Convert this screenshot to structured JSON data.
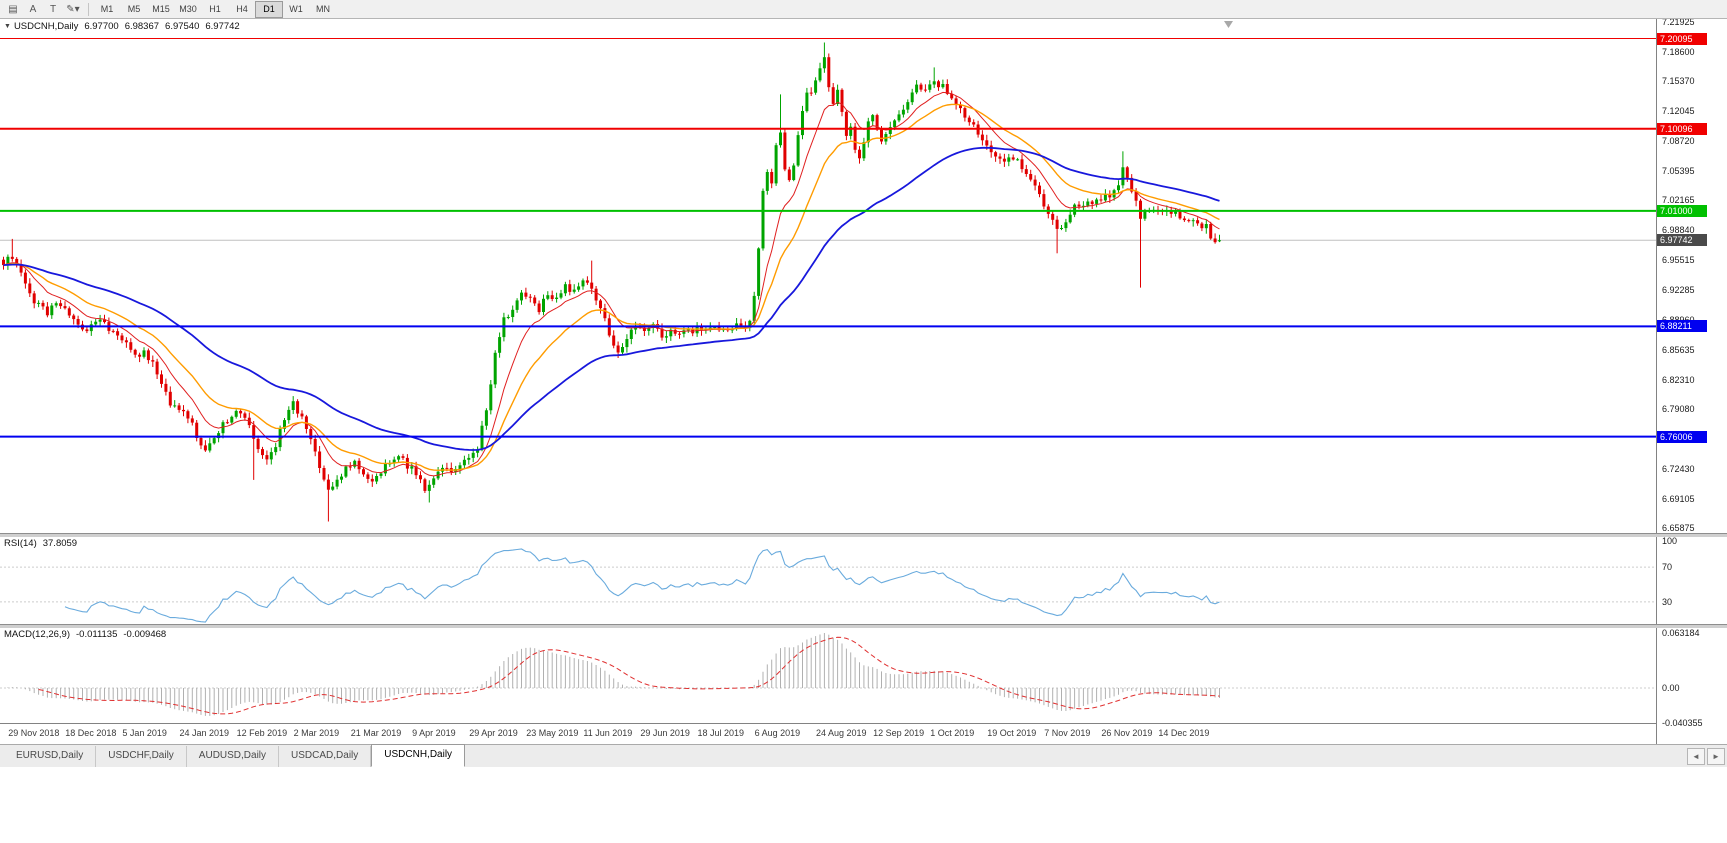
{
  "toolbar": {
    "icons": [
      {
        "name": "chart-list-icon",
        "glyph": "▤"
      },
      {
        "name": "cursor-a-icon",
        "glyph": "A"
      },
      {
        "name": "text-tool-icon",
        "glyph": "T"
      },
      {
        "name": "shapes-tool-icon",
        "glyph": "✎▾"
      }
    ],
    "timeframes": [
      "M1",
      "M5",
      "M15",
      "M30",
      "H1",
      "H4",
      "D1",
      "W1",
      "MN"
    ],
    "active_timeframe": "D1"
  },
  "main_chart": {
    "marker_glyph": "▼",
    "title": "USDCNH,Daily",
    "open": "6.97700",
    "high": "6.98367",
    "low": "6.97540",
    "close": "6.97742"
  },
  "rsi_panel": {
    "label": "RSI(14)",
    "value": "37.8059"
  },
  "macd_panel": {
    "label": "MACD(12,26,9)",
    "value1": "-0.011135",
    "value2": "-0.009468"
  },
  "tabbar": {
    "tabs": [
      "EURUSD,Daily",
      "USDCHF,Daily",
      "AUDUSD,Daily",
      "USDCAD,Daily",
      "USDCNH,Daily"
    ],
    "active": "USDCNH,Daily",
    "scroll_left": "◄",
    "scroll_right": "►"
  },
  "chart_data": {
    "type": "candlestick",
    "symbol": "USDCNH",
    "period": "Daily",
    "bars": 278,
    "price_ticks": [
      "7.21925",
      "7.18600",
      "7.15370",
      "7.12045",
      "7.08720",
      "7.05395",
      "7.02165",
      "6.98840",
      "6.95515",
      "6.92285",
      "6.88960",
      "6.85635",
      "6.82310",
      "6.79080",
      "6.75755",
      "6.72430",
      "6.69105",
      "6.65875"
    ],
    "date_labels": [
      "29 Nov 2018",
      "18 Dec 2018",
      "5 Jan 2019",
      "24 Jan 2019",
      "12 Feb 2019",
      "2 Mar 2019",
      "21 Mar 2019",
      "9 Apr 2019",
      "29 Apr 2019",
      "23 May 2019",
      "11 Jun 2019",
      "29 Jun 2019",
      "18 Jul 2019",
      "6 Aug 2019",
      "24 Aug 2019",
      "12 Sep 2019",
      "1 Oct 2019",
      "19 Oct 2019",
      "7 Nov 2019",
      "26 Nov 2019",
      "14 Dec 2019"
    ],
    "date_label_bars": [
      2,
      15,
      28,
      41,
      54,
      67,
      80,
      94,
      107,
      120,
      133,
      146,
      159,
      172,
      186,
      199,
      212,
      225,
      238,
      251,
      264
    ],
    "close_anchors": [
      [
        0,
        6.95
      ],
      [
        2,
        6.96
      ],
      [
        4,
        6.938
      ],
      [
        6,
        6.917
      ],
      [
        8,
        6.905
      ],
      [
        10,
        6.896
      ],
      [
        12,
        6.906
      ],
      [
        14,
        6.898
      ],
      [
        16,
        6.888
      ],
      [
        18,
        6.876
      ],
      [
        20,
        6.884
      ],
      [
        22,
        6.889
      ],
      [
        24,
        6.88
      ],
      [
        26,
        6.87
      ],
      [
        28,
        6.862
      ],
      [
        30,
        6.848
      ],
      [
        32,
        6.852
      ],
      [
        34,
        6.843
      ],
      [
        36,
        6.815
      ],
      [
        38,
        6.798
      ],
      [
        40,
        6.79
      ],
      [
        42,
        6.783
      ],
      [
        44,
        6.76
      ],
      [
        46,
        6.745
      ],
      [
        48,
        6.76
      ],
      [
        50,
        6.772
      ],
      [
        52,
        6.785
      ],
      [
        54,
        6.788
      ],
      [
        56,
        6.772
      ],
      [
        58,
        6.748
      ],
      [
        60,
        6.735
      ],
      [
        62,
        6.752
      ],
      [
        64,
        6.782
      ],
      [
        66,
        6.798
      ],
      [
        68,
        6.78
      ],
      [
        70,
        6.758
      ],
      [
        72,
        6.725
      ],
      [
        74,
        6.702
      ],
      [
        76,
        6.712
      ],
      [
        78,
        6.723
      ],
      [
        80,
        6.733
      ],
      [
        82,
        6.722
      ],
      [
        84,
        6.71
      ],
      [
        86,
        6.723
      ],
      [
        88,
        6.731
      ],
      [
        90,
        6.737
      ],
      [
        92,
        6.728
      ],
      [
        94,
        6.721
      ],
      [
        96,
        6.703
      ],
      [
        98,
        6.716
      ],
      [
        100,
        6.728
      ],
      [
        102,
        6.725
      ],
      [
        104,
        6.731
      ],
      [
        106,
        6.736
      ],
      [
        108,
        6.75
      ],
      [
        110,
        6.788
      ],
      [
        112,
        6.852
      ],
      [
        114,
        6.89
      ],
      [
        116,
        6.903
      ],
      [
        118,
        6.918
      ],
      [
        120,
        6.91
      ],
      [
        122,
        6.902
      ],
      [
        124,
        6.92
      ],
      [
        126,
        6.912
      ],
      [
        128,
        6.926
      ],
      [
        130,
        6.923
      ],
      [
        132,
        6.933
      ],
      [
        134,
        6.927
      ],
      [
        136,
        6.902
      ],
      [
        138,
        6.873
      ],
      [
        140,
        6.856
      ],
      [
        142,
        6.869
      ],
      [
        144,
        6.88
      ],
      [
        146,
        6.875
      ],
      [
        148,
        6.886
      ],
      [
        150,
        6.871
      ],
      [
        152,
        6.879
      ],
      [
        154,
        6.875
      ],
      [
        156,
        6.877
      ],
      [
        158,
        6.879
      ],
      [
        160,
        6.876
      ],
      [
        162,
        6.881
      ],
      [
        164,
        6.878
      ],
      [
        166,
        6.883
      ],
      [
        168,
        6.88
      ],
      [
        170,
        6.886
      ],
      [
        171,
        6.912
      ],
      [
        172,
        6.968
      ],
      [
        173,
        7.028
      ],
      [
        174,
        7.052
      ],
      [
        175,
        7.042
      ],
      [
        176,
        7.08
      ],
      [
        177,
        7.098
      ],
      [
        178,
        7.06
      ],
      [
        179,
        7.042
      ],
      [
        180,
        7.062
      ],
      [
        181,
        7.09
      ],
      [
        182,
        7.12
      ],
      [
        183,
        7.145
      ],
      [
        184,
        7.138
      ],
      [
        185,
        7.155
      ],
      [
        186,
        7.17
      ],
      [
        187,
        7.182
      ],
      [
        188,
        7.15
      ],
      [
        189,
        7.128
      ],
      [
        190,
        7.145
      ],
      [
        191,
        7.118
      ],
      [
        192,
        7.095
      ],
      [
        193,
        7.103
      ],
      [
        194,
        7.078
      ],
      [
        195,
        7.065
      ],
      [
        196,
        7.086
      ],
      [
        197,
        7.106
      ],
      [
        198,
        7.115
      ],
      [
        199,
        7.098
      ],
      [
        200,
        7.085
      ],
      [
        202,
        7.1
      ],
      [
        204,
        7.118
      ],
      [
        206,
        7.132
      ],
      [
        208,
        7.146
      ],
      [
        210,
        7.141
      ],
      [
        212,
        7.153
      ],
      [
        214,
        7.148
      ],
      [
        216,
        7.136
      ],
      [
        218,
        7.124
      ],
      [
        220,
        7.11
      ],
      [
        222,
        7.096
      ],
      [
        224,
        7.084
      ],
      [
        226,
        7.074
      ],
      [
        228,
        7.064
      ],
      [
        230,
        7.069
      ],
      [
        232,
        7.058
      ],
      [
        234,
        7.048
      ],
      [
        236,
        7.028
      ],
      [
        238,
        7.006
      ],
      [
        240,
        6.991
      ],
      [
        242,
        6.999
      ],
      [
        244,
        7.014
      ],
      [
        246,
        7.019
      ],
      [
        248,
        7.016
      ],
      [
        250,
        7.021
      ],
      [
        252,
        7.027
      ],
      [
        254,
        7.038
      ],
      [
        255,
        7.06
      ],
      [
        256,
        7.044
      ],
      [
        257,
        7.03
      ],
      [
        258,
        7.022
      ],
      [
        259,
        6.998
      ],
      [
        260,
        7.006
      ],
      [
        262,
        7.012
      ],
      [
        264,
        7.006
      ],
      [
        266,
        7.01
      ],
      [
        268,
        7.002
      ],
      [
        270,
        6.996
      ],
      [
        271,
        7.0
      ],
      [
        272,
        6.993
      ],
      [
        273,
        6.988
      ],
      [
        274,
        6.992
      ],
      [
        275,
        6.983
      ],
      [
        276,
        6.979
      ],
      [
        277,
        6.9774
      ]
    ],
    "wick_overrides": [
      {
        "i": 2,
        "high": 6.979
      },
      {
        "i": 57,
        "low": 6.712
      },
      {
        "i": 74,
        "low": 6.666
      },
      {
        "i": 97,
        "low": 6.687
      },
      {
        "i": 134,
        "high": 6.955
      },
      {
        "i": 177,
        "high": 7.139
      },
      {
        "i": 187,
        "high": 7.1965
      },
      {
        "i": 212,
        "high": 7.169
      },
      {
        "i": 240,
        "low": 6.963
      },
      {
        "i": 255,
        "high": 7.076
      },
      {
        "i": 259,
        "low": 6.925
      }
    ],
    "last_bar": {
      "open": 6.977,
      "high": 6.98367,
      "low": 6.9754,
      "close": 6.97742
    },
    "hlines": [
      {
        "price": 7.20095,
        "label": "7.20095",
        "color": "#f00000",
        "width": 1
      },
      {
        "price": 7.10096,
        "label": "7.10096",
        "color": "#f00000",
        "width": 2
      },
      {
        "price": 7.01,
        "label": "7.01000",
        "color": "#00c000",
        "width": 2
      },
      {
        "price": 6.88211,
        "label": "6.88211",
        "color": "#0000f0",
        "width": 2
      },
      {
        "price": 6.76006,
        "label": "6.76006",
        "color": "#0000f0",
        "width": 2
      }
    ],
    "current_price": {
      "value": 6.97742,
      "label": "6.97742",
      "color": "#4a4a4a"
    },
    "moving_averages": [
      {
        "period": 10,
        "color": "#e02020",
        "width": 1
      },
      {
        "period": 21,
        "color": "#ff9c00",
        "width": 1.4
      },
      {
        "period": 55,
        "color": "#1818dc",
        "width": 1.8
      }
    ],
    "colors": {
      "up": "#00a400",
      "down": "#e00000",
      "background": "#ffffff"
    },
    "rsi": {
      "period": 14,
      "color": "#6aabdd",
      "levels": [
        70,
        30
      ],
      "axis_labels": [
        "100",
        "70",
        "30"
      ],
      "current": 37.8059
    },
    "macd": {
      "fast": 12,
      "slow": 26,
      "signal": 9,
      "axis_labels": [
        "0.063184",
        "0.00",
        "-0.040355"
      ],
      "histogram_color": "#b0b0b0",
      "signal_color": "#e03030",
      "current_main": -0.011135,
      "current_signal": -0.009468
    }
  }
}
